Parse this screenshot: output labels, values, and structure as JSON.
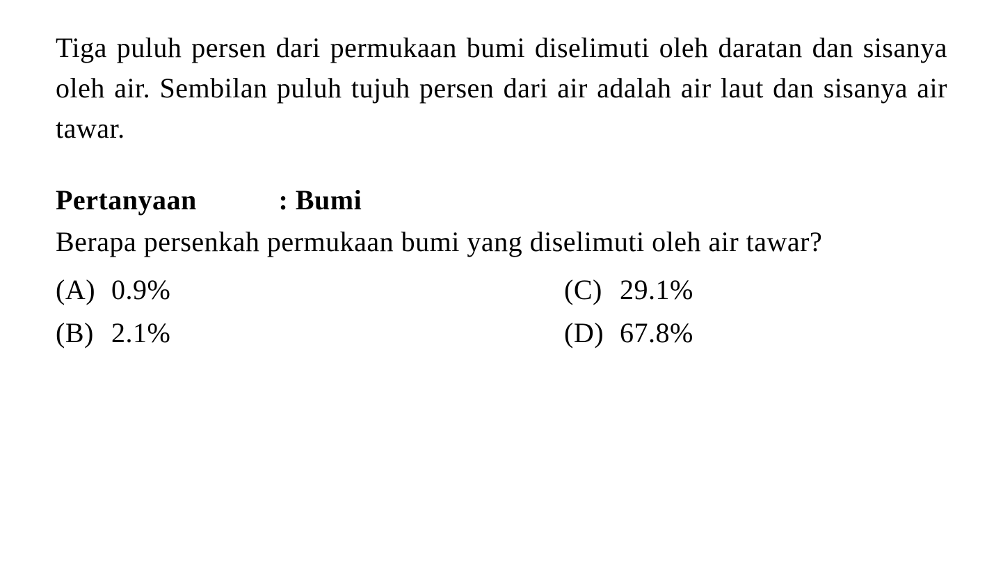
{
  "passage": "Tiga puluh persen dari permukaan bumi diselimuti oleh daratan dan sisanya oleh air. Sembilan puluh tujuh persen dari air adalah air laut dan sisanya air tawar.",
  "question": {
    "header_label": "Pertanyaan",
    "header_subject": ": Bumi",
    "text": "Berapa persenkah permukaan bumi yang diselimuti oleh air tawar?"
  },
  "options": {
    "a": {
      "letter": "(A)",
      "value": "0.9%"
    },
    "b": {
      "letter": "(B)",
      "value": "2.1%"
    },
    "c": {
      "letter": "(C)",
      "value": "29.1%"
    },
    "d": {
      "letter": "(D)",
      "value": "67.8%"
    }
  },
  "styling": {
    "background_color": "#ffffff",
    "text_color": "#000000",
    "font_family": "Times New Roman",
    "passage_fontsize": 40,
    "question_fontsize": 40,
    "option_fontsize": 40,
    "line_height": 1.45
  }
}
